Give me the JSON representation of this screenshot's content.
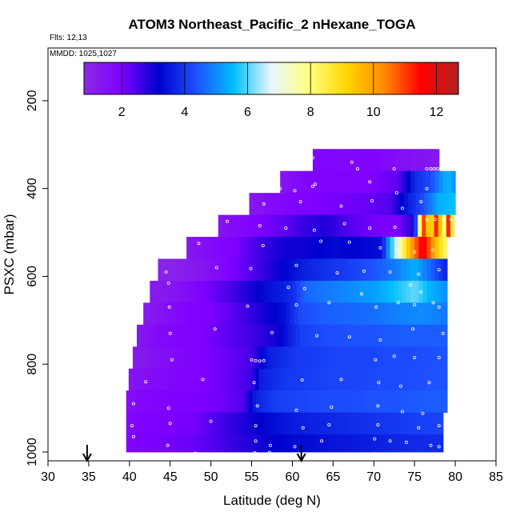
{
  "chart_data": {
    "type": "heatmap",
    "title": "ATOM3 Northeast_Pacific_2 nHexane_TOGA",
    "meta_lines": [
      "Flts: 12,13",
      "MMDD: 1025,1027"
    ],
    "xlabel": "Latitude (deg N)",
    "ylabel": "PSXC (mbar)",
    "xlim": [
      30,
      85
    ],
    "ylim": [
      1020,
      80
    ],
    "y_reversed": true,
    "x_ticks": [
      "30",
      "35",
      "40",
      "45",
      "50",
      "55",
      "60",
      "65",
      "70",
      "75",
      "80",
      "85"
    ],
    "y_ticks": [
      "200",
      "400",
      "600",
      "800",
      "1000"
    ],
    "colorbar": {
      "range": [
        0.8,
        12.7
      ],
      "ticks": [
        "2",
        "4",
        "6",
        "8",
        "10",
        "12"
      ],
      "colors": [
        "#8a2be2",
        "#7f00ff",
        "#0000cd",
        "#1e50ff",
        "#00bfff",
        "#e8f6ff",
        "#ffff80",
        "#ffd700",
        "#ff8c00",
        "#ff0000",
        "#b22222"
      ]
    },
    "arrows_at_latitude": [
      34.8,
      61.1
    ],
    "rows": [
      {
        "p_top": 310,
        "p_bot": 360,
        "lat_start": 62.5,
        "lat_end": 78.0,
        "pts": [
          [
            62.5,
            1.9
          ],
          [
            66,
            1.8
          ],
          [
            70,
            1.9
          ],
          [
            73,
            1.6
          ],
          [
            75,
            1.5
          ],
          [
            77,
            1.4
          ],
          [
            78,
            1.3
          ]
        ]
      },
      {
        "p_top": 360,
        "p_bot": 410,
        "lat_start": 58.5,
        "lat_end": 80.0,
        "pts": [
          [
            58.5,
            1.4
          ],
          [
            62,
            1.9
          ],
          [
            66,
            1.9
          ],
          [
            70,
            2.0
          ],
          [
            73,
            2.3
          ],
          [
            75,
            3.8
          ],
          [
            77,
            4.3
          ],
          [
            79,
            5.5
          ],
          [
            80,
            5.0
          ]
        ]
      },
      {
        "p_top": 410,
        "p_bot": 460,
        "lat_start": 54.7,
        "lat_end": 80.0,
        "pts": [
          [
            54.7,
            1.3
          ],
          [
            57,
            1.6
          ],
          [
            60,
            1.9
          ],
          [
            63,
            2.0
          ],
          [
            66,
            2.1
          ],
          [
            69,
            2.2
          ],
          [
            72,
            2.4
          ],
          [
            74,
            3.5
          ],
          [
            76,
            4.3
          ],
          [
            78,
            5.4
          ],
          [
            80,
            5.6
          ]
        ]
      },
      {
        "p_top": 460,
        "p_bot": 510,
        "lat_start": 50.9,
        "lat_end": 80.0,
        "pts": [
          [
            50.9,
            1.4
          ],
          [
            53,
            1.7
          ],
          [
            56,
            2.0
          ],
          [
            59,
            2.3
          ],
          [
            61,
            2.6
          ],
          [
            64,
            2.9
          ],
          [
            67,
            2.4
          ],
          [
            70,
            2.1
          ],
          [
            73,
            2.0
          ],
          [
            75,
            3.0
          ],
          [
            75.7,
            8.5
          ],
          [
            76.3,
            11.8
          ],
          [
            76.9,
            7.5
          ],
          [
            77.5,
            11.8
          ],
          [
            78.1,
            9.5
          ],
          [
            78.6,
            7.8
          ],
          [
            79.2,
            11.5
          ],
          [
            79.7,
            8.2
          ],
          [
            80,
            7.0
          ]
        ]
      },
      {
        "p_top": 510,
        "p_bot": 560,
        "lat_start": 47.0,
        "lat_end": 79.0,
        "pts": [
          [
            47,
            1.3
          ],
          [
            50,
            1.7
          ],
          [
            53,
            2.0
          ],
          [
            56,
            2.6
          ],
          [
            59,
            3.0
          ],
          [
            62,
            3.1
          ],
          [
            65,
            3.3
          ],
          [
            68,
            3.2
          ],
          [
            71,
            3.4
          ],
          [
            72,
            5.5
          ],
          [
            73,
            7.0
          ],
          [
            74,
            9.0
          ],
          [
            75,
            10.5
          ],
          [
            76,
            11.8
          ],
          [
            77,
            10.5
          ],
          [
            78,
            9.0
          ],
          [
            79,
            8.0
          ]
        ]
      },
      {
        "p_top": 560,
        "p_bot": 610,
        "lat_start": 43.5,
        "lat_end": 79.0,
        "pts": [
          [
            43.5,
            1.0
          ],
          [
            46,
            1.1
          ],
          [
            49,
            1.4
          ],
          [
            52,
            1.9
          ],
          [
            55,
            2.4
          ],
          [
            58,
            3.0
          ],
          [
            61,
            3.6
          ],
          [
            64,
            3.9
          ],
          [
            67,
            4.1
          ],
          [
            70,
            4.4
          ],
          [
            73,
            4.9
          ],
          [
            75,
            5.4
          ],
          [
            77,
            4.6
          ],
          [
            79,
            3.6
          ]
        ]
      },
      {
        "p_top": 610,
        "p_bot": 660,
        "lat_start": 42.5,
        "lat_end": 79.0,
        "pts": [
          [
            42.5,
            1.2
          ],
          [
            45,
            1.4
          ],
          [
            48,
            1.8
          ],
          [
            51,
            2.3
          ],
          [
            54,
            2.8
          ],
          [
            57,
            3.4
          ],
          [
            60,
            3.8
          ],
          [
            61.5,
            4.6
          ],
          [
            64,
            4.8
          ],
          [
            67,
            5.0
          ],
          [
            70,
            5.2
          ],
          [
            73,
            5.7
          ],
          [
            75,
            6.1
          ],
          [
            77,
            5.4
          ],
          [
            79,
            5.0
          ]
        ]
      },
      {
        "p_top": 660,
        "p_bot": 710,
        "lat_start": 41.7,
        "lat_end": 79.0,
        "pts": [
          [
            41.7,
            1.2
          ],
          [
            44,
            1.5
          ],
          [
            47,
            1.9
          ],
          [
            50,
            2.0
          ],
          [
            53,
            2.4
          ],
          [
            56,
            2.9
          ],
          [
            59,
            3.4
          ],
          [
            61,
            4.3
          ],
          [
            64,
            4.5
          ],
          [
            67,
            4.6
          ],
          [
            70,
            4.7
          ],
          [
            73,
            4.9
          ],
          [
            76,
            5.0
          ],
          [
            79,
            4.8
          ]
        ]
      },
      {
        "p_top": 710,
        "p_bot": 760,
        "lat_start": 40.9,
        "lat_end": 79.0,
        "pts": [
          [
            40.9,
            1.3
          ],
          [
            43,
            1.7
          ],
          [
            46,
            1.9
          ],
          [
            49,
            2.0
          ],
          [
            52,
            2.3
          ],
          [
            55,
            2.6
          ],
          [
            58,
            3.0
          ],
          [
            61,
            4.1
          ],
          [
            64,
            4.3
          ],
          [
            67,
            4.4
          ],
          [
            70,
            4.4
          ],
          [
            73,
            4.5
          ],
          [
            76,
            4.5
          ],
          [
            79,
            4.5
          ]
        ]
      },
      {
        "p_top": 760,
        "p_bot": 810,
        "lat_start": 40.4,
        "lat_end": 79.0,
        "pts": [
          [
            40.4,
            1.2
          ],
          [
            43,
            1.5
          ],
          [
            46,
            1.8
          ],
          [
            49,
            2.0
          ],
          [
            52,
            2.2
          ],
          [
            55,
            2.5
          ],
          [
            57,
            3.6
          ],
          [
            60,
            4.0
          ],
          [
            63,
            4.1
          ],
          [
            66,
            4.2
          ],
          [
            69,
            4.2
          ],
          [
            72,
            4.3
          ],
          [
            75,
            4.3
          ],
          [
            79,
            4.4
          ]
        ]
      },
      {
        "p_top": 810,
        "p_bot": 860,
        "lat_start": 39.9,
        "lat_end": 79.0,
        "pts": [
          [
            39.9,
            1.4
          ],
          [
            43,
            1.7
          ],
          [
            46,
            1.9
          ],
          [
            49,
            2.0
          ],
          [
            52,
            2.2
          ],
          [
            55,
            2.6
          ],
          [
            56,
            3.6
          ],
          [
            59,
            4.0
          ],
          [
            62,
            4.1
          ],
          [
            65,
            4.2
          ],
          [
            68,
            4.2
          ],
          [
            71,
            4.3
          ],
          [
            74,
            4.3
          ],
          [
            77,
            4.4
          ],
          [
            79,
            4.4
          ]
        ]
      },
      {
        "p_top": 860,
        "p_bot": 910,
        "lat_start": 39.6,
        "lat_end": 79.0,
        "pts": [
          [
            39.6,
            1.6
          ],
          [
            42,
            1.8
          ],
          [
            45,
            2.0
          ],
          [
            48,
            2.0
          ],
          [
            51,
            2.1
          ],
          [
            54,
            2.4
          ],
          [
            55.5,
            3.7
          ],
          [
            58,
            4.1
          ],
          [
            61,
            4.2
          ],
          [
            64,
            4.3
          ],
          [
            67,
            4.3
          ],
          [
            70,
            4.4
          ],
          [
            73,
            4.4
          ],
          [
            76,
            4.5
          ],
          [
            79,
            4.5
          ]
        ]
      },
      {
        "p_top": 910,
        "p_bot": 960,
        "lat_start": 39.6,
        "lat_end": 78.5,
        "pts": [
          [
            39.6,
            1.8
          ],
          [
            42,
            2.0
          ],
          [
            45,
            2.0
          ],
          [
            48,
            2.1
          ],
          [
            51,
            2.5
          ],
          [
            54,
            2.9
          ],
          [
            57,
            3.3
          ],
          [
            60,
            3.6
          ],
          [
            63,
            3.7
          ],
          [
            66,
            3.8
          ],
          [
            69,
            3.9
          ],
          [
            72,
            4.0
          ],
          [
            75,
            4.1
          ],
          [
            78.5,
            4.2
          ]
        ]
      },
      {
        "p_top": 960,
        "p_bot": 1000,
        "lat_start": 39.6,
        "lat_end": 78.5,
        "pts": [
          [
            39.6,
            1.9
          ],
          [
            42,
            2.0
          ],
          [
            45,
            2.1
          ],
          [
            48,
            2.2
          ],
          [
            51,
            2.5
          ],
          [
            54,
            2.8
          ],
          [
            57,
            3.1
          ],
          [
            60,
            3.3
          ],
          [
            63,
            3.4
          ],
          [
            66,
            3.5
          ],
          [
            69,
            3.6
          ],
          [
            72,
            3.7
          ],
          [
            75,
            3.8
          ],
          [
            78.5,
            3.8
          ]
        ]
      }
    ],
    "sample_points": [
      [
        62.5,
        330
      ],
      [
        67.3,
        340
      ],
      [
        68,
        355
      ],
      [
        72.5,
        355
      ],
      [
        76.5,
        355
      ],
      [
        77,
        355
      ],
      [
        77.4,
        355
      ],
      [
        77.8,
        355
      ],
      [
        58.5,
        400
      ],
      [
        60.3,
        405
      ],
      [
        62.5,
        395
      ],
      [
        62.8,
        390
      ],
      [
        69.5,
        385
      ],
      [
        72.8,
        410
      ],
      [
        76.5,
        400
      ],
      [
        56.5,
        435
      ],
      [
        61,
        430
      ],
      [
        66,
        440
      ],
      [
        69.8,
        428
      ],
      [
        73.5,
        445
      ],
      [
        75.8,
        430
      ],
      [
        52,
        475
      ],
      [
        56,
        485
      ],
      [
        59.2,
        490
      ],
      [
        62.7,
        495
      ],
      [
        66.4,
        480
      ],
      [
        69.5,
        490
      ],
      [
        72.6,
        488
      ],
      [
        76.5,
        470
      ],
      [
        77.5,
        470
      ],
      [
        78.6,
        470
      ],
      [
        79.5,
        470
      ],
      [
        48.5,
        525
      ],
      [
        56.4,
        530
      ],
      [
        63.5,
        520
      ],
      [
        67,
        522
      ],
      [
        70.8,
        535
      ],
      [
        72.8,
        540
      ],
      [
        75,
        545
      ],
      [
        77.2,
        540
      ],
      [
        44.5,
        590
      ],
      [
        50.7,
        580
      ],
      [
        54.9,
        582
      ],
      [
        60.5,
        575
      ],
      [
        65.5,
        592
      ],
      [
        68.8,
        588
      ],
      [
        72,
        590
      ],
      [
        75.5,
        595
      ],
      [
        78,
        585
      ],
      [
        44.8,
        615
      ],
      [
        59.5,
        625
      ],
      [
        61.5,
        628
      ],
      [
        68.5,
        640
      ],
      [
        74.5,
        620
      ],
      [
        75.8,
        635
      ],
      [
        77.3,
        660
      ],
      [
        44.9,
        670
      ],
      [
        54.5,
        668
      ],
      [
        60.5,
        665
      ],
      [
        64.5,
        660
      ],
      [
        70.3,
        670
      ],
      [
        73,
        660
      ],
      [
        75,
        665
      ],
      [
        78,
        670
      ],
      [
        45,
        730
      ],
      [
        50.5,
        720
      ],
      [
        57.5,
        728
      ],
      [
        63,
        735
      ],
      [
        67,
        738
      ],
      [
        70.8,
        745
      ],
      [
        74.8,
        720
      ],
      [
        78.5,
        730
      ],
      [
        45.2,
        790
      ],
      [
        55,
        790
      ],
      [
        55.5,
        792
      ],
      [
        56,
        793
      ],
      [
        56.5,
        792
      ],
      [
        70.2,
        790
      ],
      [
        72.5,
        782
      ],
      [
        75,
        785
      ],
      [
        78,
        785
      ],
      [
        42,
        840
      ],
      [
        49,
        835
      ],
      [
        55.3,
        842
      ],
      [
        61.2,
        836
      ],
      [
        66,
        835
      ],
      [
        70.6,
        842
      ],
      [
        73.3,
        850
      ],
      [
        76.8,
        842
      ],
      [
        40.5,
        890
      ],
      [
        44.8,
        900
      ],
      [
        55.7,
        895
      ],
      [
        60.5,
        905
      ],
      [
        64.8,
        898
      ],
      [
        70.5,
        895
      ],
      [
        73.5,
        908
      ],
      [
        76,
        912
      ],
      [
        40.3,
        940
      ],
      [
        45,
        935
      ],
      [
        50,
        930
      ],
      [
        55.5,
        940
      ],
      [
        61.3,
        945
      ],
      [
        64.5,
        938
      ],
      [
        70.5,
        938
      ],
      [
        75.5,
        945
      ],
      [
        78,
        940
      ],
      [
        40.5,
        965
      ],
      [
        44.7,
        985
      ],
      [
        55.5,
        975
      ],
      [
        57.3,
        985
      ],
      [
        60.3,
        988
      ],
      [
        63.6,
        975
      ],
      [
        70.1,
        970
      ],
      [
        72,
        975
      ],
      [
        74,
        978
      ],
      [
        77,
        985
      ],
      [
        78,
        988
      ],
      [
        44.8,
        1005
      ],
      [
        45,
        1005
      ],
      [
        48.1,
        1003
      ],
      [
        55.4,
        1002
      ],
      [
        57.2,
        1001
      ],
      [
        60.6,
        1005
      ],
      [
        61.5,
        1004
      ],
      [
        65.6,
        1005
      ],
      [
        70,
        1004
      ],
      [
        73.6,
        1004
      ],
      [
        77.8,
        1005
      ]
    ]
  }
}
